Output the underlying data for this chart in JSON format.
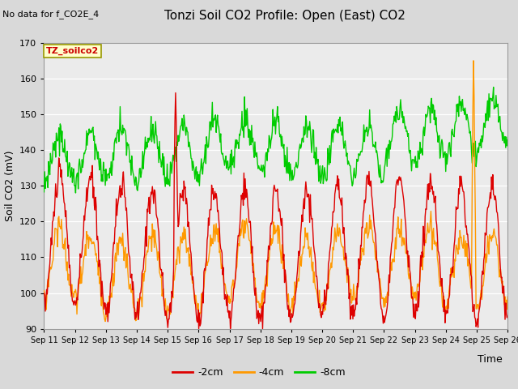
{
  "title": "Tonzi Soil CO2 Profile: Open (East) CO2",
  "subtitle": "No data for f_CO2E_4",
  "ylabel": "Soil CO2 (mV)",
  "xlabel": "Time",
  "legend_label": "TZ_soilco2",
  "ylim": [
    90,
    170
  ],
  "yticks": [
    90,
    100,
    110,
    120,
    130,
    140,
    150,
    160,
    170
  ],
  "xtick_labels": [
    "Sep 11",
    "Sep 12",
    "Sep 13",
    "Sep 14",
    "Sep 15",
    "Sep 16",
    "Sep 17",
    "Sep 18",
    "Sep 19",
    "Sep 20",
    "Sep 21",
    "Sep 22",
    "Sep 23",
    "Sep 24",
    "Sep 25",
    "Sep 26"
  ],
  "line_colors": {
    "2cm": "#dd0000",
    "4cm": "#ff9900",
    "8cm": "#00cc00"
  },
  "legend_entries": [
    "-2cm",
    "-4cm",
    "-8cm"
  ],
  "background_color": "#d9d9d9",
  "plot_bg_color": "#ebebeb",
  "grid_color": "#ffffff",
  "n_days": 15,
  "pts_per_day": 48
}
